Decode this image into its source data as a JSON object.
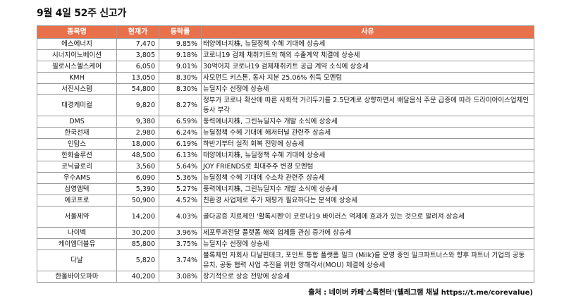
{
  "title": "9월 4일 52주 신고가",
  "columns": [
    "종목명",
    "현재가",
    "등락률",
    "사유"
  ],
  "rows": [
    {
      "name": "에스에너지",
      "price": "7,470",
      "change": "9.85%",
      "reason": "태양에너지株, 뉴딜정책 수혜 기대에 상승세"
    },
    {
      "name": "시너지이노베이션",
      "price": "3,805",
      "change": "9.18%",
      "reason": "코로나19 검체 채취키트의 해외 수출계약 체결에 상승세"
    },
    {
      "name": "필로시스헬스케어",
      "price": "6,050",
      "change": "9.01%",
      "reason": "30억어치 코로나19 검체채취키트 공급 계약 소식에 상승세"
    },
    {
      "name": "KMH",
      "price": "13,050",
      "change": "8.30%",
      "reason": "사모펀드 키스톤, 동사 지분 25.06% 취득 모멘텀"
    },
    {
      "name": "서진시스템",
      "price": "54,800",
      "change": "8.30%",
      "reason": "뉴딜지수 선정에 상승세"
    },
    {
      "name": "태경케미컬",
      "price": "9,820",
      "change": "8.27%",
      "reason": "정부가 코로나 확산에 따른 사회적 거리두기를 2.5단계로 상향하면서 배달음식 주문 급증에 따라 드라이아이스업체인 동사 부각",
      "tall": true
    },
    {
      "name": "DMS",
      "price": "9,380",
      "change": "6.59%",
      "reason": "풍력에너지株, 그린뉴딜지수 개발 소식에 상승세"
    },
    {
      "name": "한국선재",
      "price": "2,980",
      "change": "6.24%",
      "reason": "뉴딜정책 수혜 기대에 해저터널 관련주 상승세"
    },
    {
      "name": "인탑스",
      "price": "18,000",
      "change": "6.19%",
      "reason": "하반기부터 실적 회복 전망에 상승세"
    },
    {
      "name": "한화솔루션",
      "price": "48,500",
      "change": "6.13%",
      "reason": "태양에너지株, 뉴딜정책 수혜 기대에 상승세"
    },
    {
      "name": "코닉글로리",
      "price": "3,560",
      "change": "5.64%",
      "reason": "JOY FRIENDS로 최대주주 변경 모멘텀"
    },
    {
      "name": "우수AMS",
      "price": "6,090",
      "change": "5.36%",
      "reason": "뉴딜정책 수혜 기대에 수소차 관련주 상승세"
    },
    {
      "name": "삼영엠텍",
      "price": "5,390",
      "change": "5.27%",
      "reason": "풍력에너지株, 그린뉴딜지수 개발 소식에 상승세"
    },
    {
      "name": "에코프로",
      "price": "50,900",
      "change": "4.52%",
      "reason": "친환경 사업체로 주가 재평가 필요하다는 분석에 상승세"
    },
    {
      "name": "서울제약",
      "price": "14,200",
      "change": "4.03%",
      "reason": "골다공증 치료제인 '활록시펜'이 코로나19 바이러스 억제에 효과가 있는 것으로 알려져 상승세",
      "tall": true
    },
    {
      "name": "나이벡",
      "price": "30,200",
      "change": "3.96%",
      "reason": "세포투과전달 플랫폼 해외 업체들 관심 증가에 상승세"
    },
    {
      "name": "케이엠더블유",
      "price": "85,800",
      "change": "3.75%",
      "reason": "뉴딜지수 선정에 상승세"
    },
    {
      "name": "다날",
      "price": "5,820",
      "change": "3.74%",
      "reason": "블록체인 자회사 다날핀테크, 포인트 통합 플랫폼 밀크 (Milk)를 운영 중인 밀크파트너스와 향후 파트너 기업의 공동 유치, 공동 협력 사업 추진을 위한 양해각서(MOU) 체결에 상승세",
      "tall": true
    },
    {
      "name": "한울바이오파마",
      "price": "40,200",
      "change": "3.08%",
      "reason": "장기적으로 상승 전망에 상승세"
    }
  ],
  "source": "출처 : 네이버 카페'스톡헌터'(텔레그램 채널 https://t.me/corevalue)",
  "colors": {
    "header_bg": "#e8704a",
    "header_text": "#ffffff",
    "border": "#9a9a9a"
  }
}
